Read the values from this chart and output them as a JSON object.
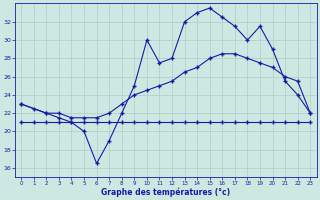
{
  "line1_x": [
    0,
    1,
    2,
    3,
    4,
    5,
    6,
    7,
    8,
    9,
    10,
    11,
    12,
    13,
    14,
    15,
    16,
    17,
    18,
    19,
    20,
    21,
    22,
    23
  ],
  "line1_y": [
    21,
    21,
    21,
    21,
    21,
    21,
    21,
    21,
    21,
    21,
    21,
    21,
    21,
    21,
    21,
    21,
    21,
    21,
    21,
    21,
    21,
    21,
    21,
    21
  ],
  "line2_x": [
    0,
    1,
    2,
    3,
    4,
    5,
    6,
    7,
    8,
    9,
    10,
    11,
    12,
    13,
    14,
    15,
    16,
    17,
    18,
    19,
    20,
    21,
    22,
    23
  ],
  "line2_y": [
    23,
    22.5,
    22,
    22,
    21.5,
    21.5,
    21.5,
    22,
    23,
    24,
    24.5,
    25,
    25.5,
    26.5,
    27,
    28,
    28.5,
    28.5,
    28,
    27.5,
    27,
    26,
    25.5,
    22
  ],
  "line3_x": [
    0,
    2,
    3,
    4,
    5,
    6,
    7,
    8,
    9,
    10,
    11,
    12,
    13,
    14,
    15,
    16,
    17,
    18,
    19,
    20,
    21,
    22,
    23
  ],
  "line3_y": [
    23,
    22,
    21.5,
    21,
    20,
    16.5,
    19,
    22,
    25,
    30,
    27.5,
    28,
    32,
    33,
    33.5,
    32.5,
    31.5,
    30,
    31.5,
    29,
    25.5,
    24,
    22
  ],
  "line_color": "#1a1aaa",
  "bg_color": "#cde8e0",
  "grid_color": "#aacfc8",
  "xlabel": "Graphe des températures (°c)",
  "xlim": [
    -0.5,
    23.5
  ],
  "ylim": [
    15,
    34
  ],
  "yticks": [
    16,
    18,
    20,
    22,
    24,
    26,
    28,
    30,
    32
  ],
  "xticks": [
    0,
    1,
    2,
    3,
    4,
    5,
    6,
    7,
    8,
    9,
    10,
    11,
    12,
    13,
    14,
    15,
    16,
    17,
    18,
    19,
    20,
    21,
    22,
    23
  ]
}
